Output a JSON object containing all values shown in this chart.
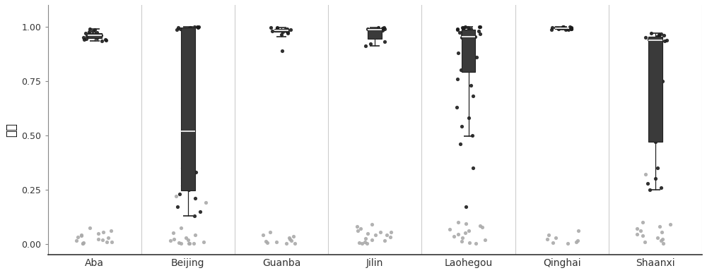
{
  "categories": [
    "Aba",
    "Beijing",
    "Guanba",
    "Jilin",
    "Laohegou",
    "Qinghai",
    "Shaanxi"
  ],
  "ylabel": "概率",
  "ylim": [
    -0.05,
    1.1
  ],
  "yticks": [
    0.0,
    0.25,
    0.5,
    0.75,
    1.0
  ],
  "background_color": "#ffffff",
  "panel_color": "#ffffff",
  "border_color": "#cccccc",
  "dark_color": "#1a1a1a",
  "gray_color": "#aaaaaa",
  "box_fill": "#3a3a3a",
  "data": {
    "Aba": {
      "correct": [
        0.99,
        0.985,
        0.98,
        0.975,
        0.972,
        0.97,
        0.968,
        0.965,
        0.963,
        0.96,
        0.958,
        0.955,
        0.953,
        0.95,
        0.948,
        0.945,
        0.942,
        0.94,
        0.938,
        0.935
      ],
      "wrong": [
        0.075,
        0.06,
        0.055,
        0.048,
        0.042,
        0.038,
        0.033,
        0.028,
        0.023,
        0.018,
        0.014,
        0.01,
        0.008,
        0.005,
        0.003,
        0.002
      ]
    },
    "Beijing": {
      "correct": [
        1.0,
        0.999,
        0.998,
        0.997,
        0.996,
        0.995,
        0.99,
        0.985,
        0.84,
        0.69,
        0.35,
        0.33,
        0.3,
        0.27,
        0.25,
        0.23,
        0.21,
        0.17,
        0.15,
        0.13
      ],
      "wrong": [
        0.075,
        0.05,
        0.04,
        0.03,
        0.022,
        0.018,
        0.014,
        0.01,
        0.007,
        0.004,
        0.003,
        0.002,
        0.001,
        0.22,
        0.19
      ]
    },
    "Guanba": {
      "correct": [
        0.997,
        0.995,
        0.993,
        0.991,
        0.989,
        0.987,
        0.985,
        0.983,
        0.981,
        0.979,
        0.977,
        0.975,
        0.97,
        0.965,
        0.89
      ],
      "wrong": [
        0.055,
        0.042,
        0.035,
        0.028,
        0.022,
        0.017,
        0.013,
        0.009,
        0.006,
        0.004,
        0.002
      ]
    },
    "Jilin": {
      "correct": [
        0.997,
        0.995,
        0.992,
        0.99,
        0.988,
        0.985,
        0.982,
        0.93,
        0.92,
        0.91
      ],
      "wrong": [
        0.09,
        0.08,
        0.07,
        0.062,
        0.055,
        0.048,
        0.04,
        0.033,
        0.026,
        0.02,
        0.015,
        0.01,
        0.006,
        0.004,
        0.002,
        0.055,
        0.042
      ]
    },
    "Laohegou": {
      "correct": [
        1.0,
        0.999,
        0.998,
        0.997,
        0.996,
        0.995,
        0.993,
        0.991,
        0.989,
        0.987,
        0.985,
        0.983,
        0.98,
        0.977,
        0.974,
        0.971,
        0.968,
        0.965,
        0.96,
        0.955,
        0.95,
        0.94,
        0.93,
        0.92,
        0.91,
        0.9,
        0.88,
        0.86,
        0.83,
        0.8,
        0.76,
        0.73,
        0.68,
        0.63,
        0.58,
        0.54,
        0.5,
        0.46,
        0.35,
        0.17
      ],
      "wrong": [
        0.1,
        0.092,
        0.084,
        0.076,
        0.068,
        0.06,
        0.052,
        0.044,
        0.036,
        0.028,
        0.02,
        0.013,
        0.007,
        0.003
      ]
    },
    "Qinghai": {
      "correct": [
        1.0,
        0.999,
        0.998,
        0.997,
        0.996,
        0.995,
        0.994,
        0.993,
        0.992,
        0.991,
        0.99,
        0.989,
        0.988,
        0.987,
        0.986,
        0.985
      ],
      "wrong": [
        0.06,
        0.042,
        0.03,
        0.021,
        0.015,
        0.01,
        0.006,
        0.003
      ]
    },
    "Shaanxi": {
      "correct": [
        0.97,
        0.966,
        0.963,
        0.96,
        0.957,
        0.954,
        0.951,
        0.948,
        0.945,
        0.942,
        0.939,
        0.936,
        0.933,
        0.93,
        0.75,
        0.47,
        0.35,
        0.3,
        0.28,
        0.26,
        0.25
      ],
      "wrong": [
        0.1,
        0.09,
        0.08,
        0.07,
        0.062,
        0.054,
        0.046,
        0.038,
        0.03,
        0.022,
        0.015,
        0.009,
        0.004,
        0.32
      ]
    }
  }
}
